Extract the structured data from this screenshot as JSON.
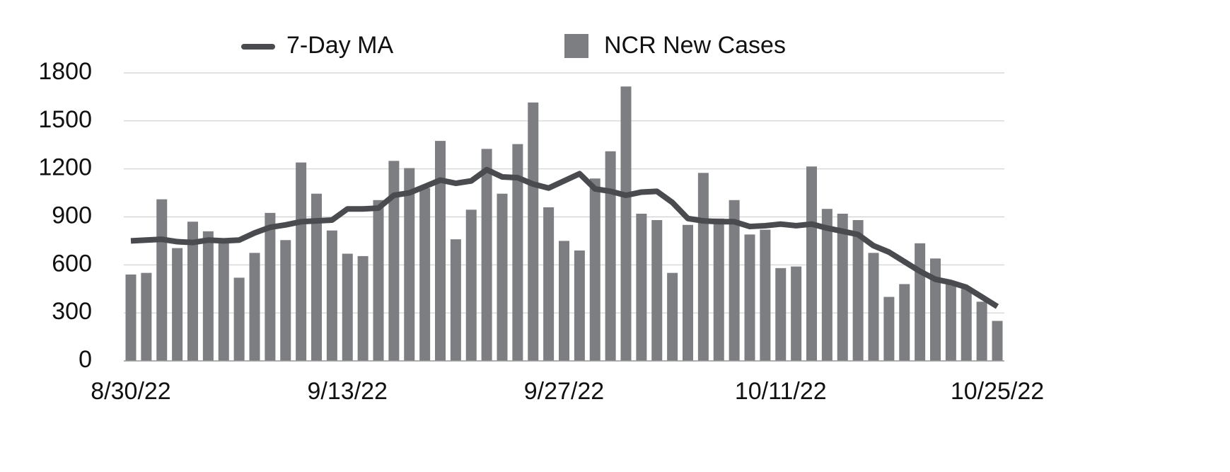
{
  "chart_data": {
    "type": "bar",
    "categories": [
      "8/30/22",
      null,
      null,
      null,
      null,
      null,
      null,
      null,
      null,
      null,
      null,
      null,
      null,
      null,
      "9/13/22",
      null,
      null,
      null,
      null,
      null,
      null,
      null,
      null,
      null,
      null,
      null,
      null,
      null,
      "9/27/22",
      null,
      null,
      null,
      null,
      null,
      null,
      null,
      null,
      null,
      null,
      null,
      null,
      null,
      "10/11/22",
      null,
      null,
      null,
      null,
      null,
      null,
      null,
      null,
      null,
      null,
      null,
      null,
      null,
      "10/25/22"
    ],
    "series": [
      {
        "name": "7-Day MA",
        "type": "line",
        "color": "#4a4b4f",
        "values": [
          750,
          755,
          760,
          745,
          740,
          755,
          750,
          755,
          800,
          835,
          850,
          870,
          875,
          880,
          950,
          950,
          955,
          1035,
          1050,
          1090,
          1130,
          1110,
          1125,
          1195,
          1150,
          1145,
          1105,
          1080,
          1125,
          1170,
          1075,
          1060,
          1035,
          1055,
          1060,
          990,
          890,
          875,
          870,
          870,
          840,
          845,
          855,
          845,
          855,
          830,
          810,
          790,
          720,
          680,
          620,
          560,
          510,
          490,
          460,
          400,
          340
        ]
      },
      {
        "name": "NCR New Cases",
        "type": "bar",
        "color": "#7d7e82",
        "values": [
          540,
          550,
          1010,
          705,
          870,
          810,
          750,
          520,
          675,
          925,
          755,
          1240,
          1045,
          815,
          670,
          655,
          1005,
          1250,
          1205,
          1080,
          1375,
          760,
          945,
          1325,
          1045,
          1355,
          1615,
          960,
          750,
          690,
          1140,
          1310,
          1715,
          920,
          880,
          550,
          850,
          1175,
          890,
          1005,
          790,
          820,
          580,
          590,
          1215,
          950,
          920,
          880,
          675,
          400,
          480,
          735,
          640,
          480,
          450,
          370,
          250
        ]
      }
    ],
    "ylim": [
      0,
      1800
    ],
    "yticks": [
      0,
      300,
      600,
      900,
      1200,
      1500,
      1800
    ],
    "grid": true,
    "legend": "top"
  }
}
